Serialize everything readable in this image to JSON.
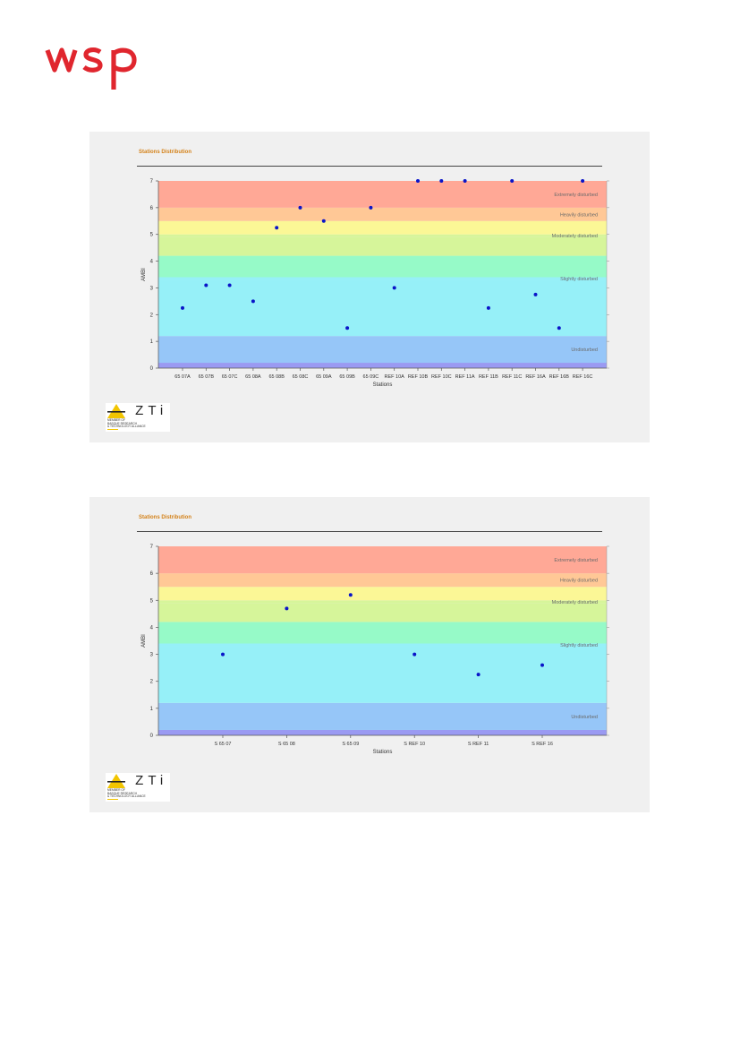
{
  "brand": {
    "name": "wsp",
    "color": "#e0262e"
  },
  "charts": [
    {
      "panel_title": "Stations Distribution",
      "logo": {
        "word": "AZTi",
        "tagline": [
          "Member of",
          "Basque Research",
          "& Technology Alliance"
        ],
        "accent": "#f2c500"
      }
    },
    {
      "panel_title": "Stations Distribution",
      "logo": {
        "word": "AZTi",
        "tagline": [
          "Member of",
          "Basque Research",
          "& Technology Alliance"
        ],
        "accent": "#f2c500"
      }
    }
  ],
  "chart_data": [
    {
      "type": "scatter",
      "title": "",
      "xlabel": "Stations",
      "ylabel": "AMBI",
      "ylim": [
        0,
        7
      ],
      "yticks": [
        0,
        1,
        2,
        3,
        4,
        5,
        6,
        7
      ],
      "categories": [
        "65 07A",
        "65 07B",
        "65 07C",
        "65 08A",
        "65 08B",
        "65 08C",
        "65 09A",
        "65 09B",
        "65 09C",
        "REF 10A",
        "REF 10B",
        "REF 10C",
        "REF 11A",
        "REF 11B",
        "REF 11C",
        "REF 16A",
        "REF 16B",
        "REF 16C"
      ],
      "values": [
        2.25,
        3.1,
        3.1,
        2.5,
        5.25,
        6.0,
        5.5,
        1.5,
        6.0,
        3.0,
        7.0,
        7.0,
        7.0,
        2.25,
        7.0,
        2.75,
        1.5,
        7.0
      ],
      "point_color": "#0a14c8",
      "bands": [
        {
          "from": 0.0,
          "to": 0.2,
          "color": "#9a9af2",
          "label": ""
        },
        {
          "from": 0.2,
          "to": 1.2,
          "color": "#96c6f8",
          "label": "Undisturbed"
        },
        {
          "from": 1.2,
          "to": 3.3,
          "color": "#96f0f8",
          "label": ""
        },
        {
          "from": 3.3,
          "to": 3.4,
          "color": "#96f0f8",
          "label": "Slightly disturbed"
        },
        {
          "from": 3.4,
          "to": 4.2,
          "color": "#96fac8",
          "label": ""
        },
        {
          "from": 4.2,
          "to": 4.9,
          "color": "#d6f59a",
          "label": ""
        },
        {
          "from": 4.9,
          "to": 5.0,
          "color": "#d6f59a",
          "label": "Moderately disturbed"
        },
        {
          "from": 5.0,
          "to": 5.5,
          "color": "#fbf796",
          "label": ""
        },
        {
          "from": 5.5,
          "to": 6.0,
          "color": "#ffc896",
          "label": "Heavily disturbed"
        },
        {
          "from": 6.0,
          "to": 7.0,
          "color": "#ffa896",
          "label": "Extremely disturbed"
        }
      ],
      "grid": false,
      "legend": "none"
    },
    {
      "type": "scatter",
      "title": "",
      "xlabel": "Stations",
      "ylabel": "AMBI",
      "ylim": [
        0,
        7
      ],
      "yticks": [
        0,
        1,
        2,
        3,
        4,
        5,
        6,
        7
      ],
      "categories": [
        "S 65 07",
        "S 65 08",
        "S 65 09",
        "S REF 10",
        "S REF 11",
        "S REF 16"
      ],
      "values": [
        3.0,
        4.7,
        5.2,
        3.0,
        2.25,
        2.6
      ],
      "point_color": "#0a14c8",
      "bands": [
        {
          "from": 0.0,
          "to": 0.2,
          "color": "#9a9af2",
          "label": ""
        },
        {
          "from": 0.2,
          "to": 1.2,
          "color": "#96c6f8",
          "label": "Undisturbed"
        },
        {
          "from": 1.2,
          "to": 3.3,
          "color": "#96f0f8",
          "label": ""
        },
        {
          "from": 3.3,
          "to": 3.4,
          "color": "#96f0f8",
          "label": "Slightly disturbed"
        },
        {
          "from": 3.4,
          "to": 4.2,
          "color": "#96fac8",
          "label": ""
        },
        {
          "from": 4.2,
          "to": 4.9,
          "color": "#d6f59a",
          "label": ""
        },
        {
          "from": 4.9,
          "to": 5.0,
          "color": "#d6f59a",
          "label": "Moderately disturbed"
        },
        {
          "from": 5.0,
          "to": 5.5,
          "color": "#fbf796",
          "label": ""
        },
        {
          "from": 5.5,
          "to": 6.0,
          "color": "#ffc896",
          "label": "Heavily disturbed"
        },
        {
          "from": 6.0,
          "to": 7.0,
          "color": "#ffa896",
          "label": "Extremely disturbed"
        }
      ],
      "grid": false,
      "legend": "none"
    }
  ]
}
